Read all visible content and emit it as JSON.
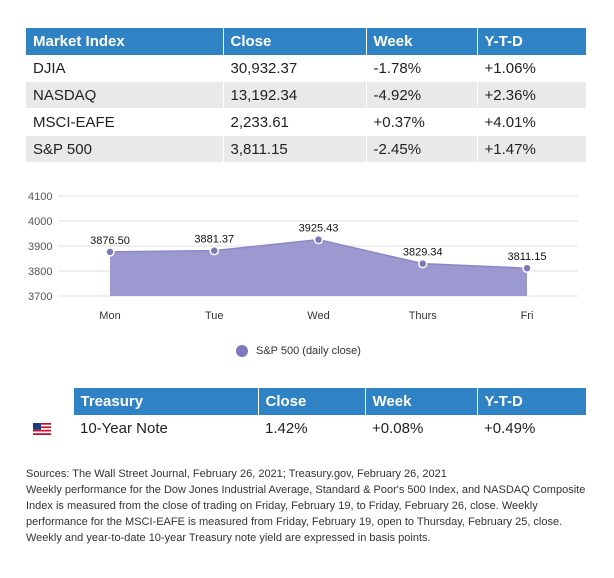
{
  "market_table": {
    "headers": [
      "Market Index",
      "Close",
      "Week",
      "Y-T-D"
    ],
    "rows": [
      [
        "DJIA",
        "30,932.37",
        "-1.78%",
        "+1.06%"
      ],
      [
        "NASDAQ",
        "13,192.34",
        "-4.92%",
        "+2.36%"
      ],
      [
        "MSCI-EAFE",
        "2,233.61",
        "+0.37%",
        "+4.01%"
      ],
      [
        "S&P 500",
        "3,811.15",
        "-2.45%",
        "+1.47%"
      ]
    ]
  },
  "chart_data": {
    "type": "area",
    "categories": [
      "Mon",
      "Tue",
      "Wed",
      "Thurs",
      "Fri"
    ],
    "series": [
      {
        "name": "S&P 500 (daily close)",
        "values": [
          3876.5,
          3881.37,
          3925.43,
          3829.34,
          3811.15
        ],
        "color": "#9b99cf"
      }
    ],
    "data_labels": [
      "3876.50",
      "3881.37",
      "3925.43",
      "3829.34",
      "3811.15"
    ],
    "yticks": [
      3700,
      3800,
      3900,
      4000,
      4100
    ],
    "ylim": [
      3700,
      4100
    ],
    "grid": true,
    "legend_position": "bottom",
    "marker_color": "#7b78bc"
  },
  "legend": {
    "label": "S&P 500 (daily close)"
  },
  "treasury_table": {
    "headers": [
      "",
      "Treasury",
      "Close",
      "Week",
      "Y-T-D"
    ],
    "rows": [
      [
        "flag-icon",
        "10-Year Note",
        "1.42%",
        "+0.08%",
        "+0.49%"
      ]
    ]
  },
  "notes": [
    "Sources: The Wall Street Journal, February 26, 2021; Treasury.gov, February 26, 2021",
    "Weekly performance for the Dow Jones Industrial Average, Standard & Poor's 500 Index, and NASDAQ Composite Index is measured from the close of trading on Friday, February 19, to Friday, February 26, close. Weekly performance for the MSCI-EAFE is measured from Friday, February 19, open to Thursday, February 25, close. Weekly and year-to-date 10-year Treasury note yield are expressed in basis points."
  ],
  "colors": {
    "header_blue": "#2f82c3",
    "row_gray": "#e9e9e9",
    "area_fill": "#9b99cf",
    "marker": "#7b78bc"
  }
}
